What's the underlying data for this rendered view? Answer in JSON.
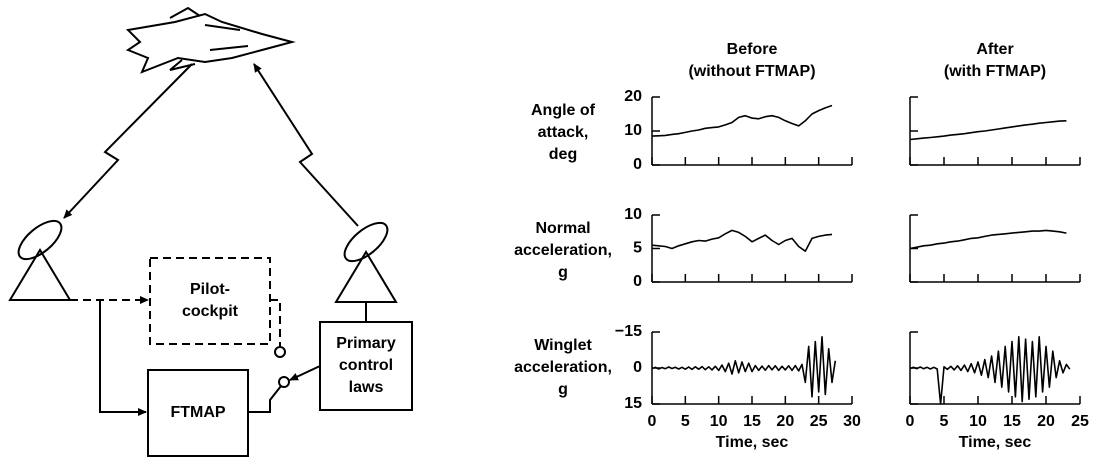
{
  "diagram": {
    "pilot": [
      "Pilot-",
      "cockpit"
    ],
    "control": [
      "Primary",
      "control",
      "laws"
    ],
    "ftmap": "FTMAP"
  },
  "chart_data": [
    {
      "type": "line",
      "title": [
        "Before",
        "(without FTMAP)"
      ],
      "ylabel": [
        "Angle of",
        "attack,",
        "deg"
      ],
      "x": [
        0,
        1,
        2,
        3,
        4,
        5,
        6,
        7,
        8,
        9,
        10,
        11,
        12,
        13,
        14,
        15,
        16,
        17,
        18,
        19,
        20,
        21,
        22,
        23,
        24,
        25,
        26,
        27
      ],
      "values": [
        8.5,
        8.6,
        8.7,
        9,
        9.2,
        9.6,
        10,
        10.3,
        10.8,
        11,
        11.2,
        11.8,
        12.5,
        14,
        14.5,
        13.8,
        13.6,
        14.2,
        14.5,
        14,
        13,
        12.2,
        11.5,
        13,
        15,
        16,
        16.8,
        17.5
      ],
      "color": "#000000",
      "xlim": [
        0,
        30
      ],
      "xticks": [
        0,
        5,
        10,
        15,
        20,
        25,
        30
      ],
      "ylim": [
        0,
        20
      ],
      "yticks": [
        0,
        10,
        20
      ],
      "show_ytick_labels": true,
      "show_xtick_labels": false
    },
    {
      "type": "line",
      "title": [
        "After",
        "(with FTMAP)"
      ],
      "x": [
        0,
        1,
        2,
        3,
        4,
        5,
        6,
        7,
        8,
        9,
        10,
        11,
        12,
        13,
        14,
        15,
        16,
        17,
        18,
        19,
        20,
        21,
        22,
        23
      ],
      "values": [
        7.5,
        7.7,
        7.9,
        8.1,
        8.3,
        8.5,
        8.8,
        9,
        9.2,
        9.5,
        9.8,
        10,
        10.3,
        10.6,
        10.9,
        11.2,
        11.5,
        11.8,
        12,
        12.3,
        12.5,
        12.7,
        12.9,
        13
      ],
      "color": "#000000",
      "xlim": [
        0,
        25
      ],
      "xticks": [
        0,
        5,
        10,
        15,
        20,
        25
      ],
      "ylim": [
        0,
        20
      ],
      "yticks": [
        0,
        10,
        20
      ],
      "show_ytick_labels": false,
      "show_xtick_labels": false
    },
    {
      "type": "line",
      "ylabel": [
        "Normal",
        "acceleration,",
        "g"
      ],
      "x": [
        0,
        1,
        2,
        3,
        4,
        5,
        6,
        7,
        8,
        9,
        10,
        11,
        12,
        13,
        14,
        15,
        16,
        17,
        18,
        19,
        20,
        21,
        22,
        23,
        24,
        25,
        26,
        27
      ],
      "values": [
        5.5,
        5.4,
        5.3,
        5,
        5.4,
        5.7,
        6,
        6.2,
        6.1,
        6.4,
        6.6,
        7.2,
        7.7,
        7.4,
        6.8,
        6,
        6.5,
        7,
        6.2,
        5.6,
        6.2,
        6.5,
        5.3,
        4.6,
        6.5,
        6.8,
        7,
        7.1
      ],
      "color": "#000000",
      "xlim": [
        0,
        30
      ],
      "xticks": [
        0,
        5,
        10,
        15,
        20,
        25,
        30
      ],
      "ylim": [
        0,
        10
      ],
      "yticks": [
        0,
        5,
        10
      ],
      "show_ytick_labels": true,
      "show_xtick_labels": false
    },
    {
      "type": "line",
      "x": [
        0,
        1,
        2,
        3,
        4,
        5,
        6,
        7,
        8,
        9,
        10,
        11,
        12,
        13,
        14,
        15,
        16,
        17,
        18,
        19,
        20,
        21,
        22,
        23
      ],
      "values": [
        5,
        5.2,
        5.4,
        5.5,
        5.7,
        5.8,
        6,
        6.1,
        6.3,
        6.5,
        6.6,
        6.8,
        7,
        7.1,
        7.2,
        7.3,
        7.4,
        7.5,
        7.6,
        7.6,
        7.7,
        7.6,
        7.5,
        7.3
      ],
      "color": "#000000",
      "xlim": [
        0,
        25
      ],
      "xticks": [
        0,
        5,
        10,
        15,
        20,
        25
      ],
      "ylim": [
        0,
        10
      ],
      "yticks": [
        0,
        5,
        10
      ],
      "show_ytick_labels": false,
      "show_xtick_labels": false
    },
    {
      "type": "line",
      "ylabel": [
        "Winglet",
        "acceleration,",
        "g"
      ],
      "xlabel": "Time, sec",
      "x": [
        0,
        0.5,
        1,
        1.5,
        2,
        2.5,
        3,
        3.5,
        4,
        4.5,
        5,
        5.5,
        6,
        6.5,
        7,
        7.5,
        8,
        8.5,
        9,
        9.5,
        10,
        10.5,
        11,
        11.5,
        12,
        12.5,
        13,
        13.5,
        14,
        14.5,
        15,
        15.5,
        16,
        16.5,
        17,
        17.5,
        18,
        18.5,
        19,
        19.5,
        20,
        20.5,
        21,
        21.5,
        22,
        22.5,
        23,
        23.5,
        24,
        24.5,
        25,
        25.5,
        26,
        26.5,
        27,
        27.5
      ],
      "values": [
        0.3,
        -0.3,
        0.4,
        -0.2,
        0.3,
        -0.4,
        0.2,
        -0.3,
        0.4,
        -0.3,
        0.5,
        -0.4,
        0.6,
        -0.5,
        0.5,
        -0.6,
        0.7,
        -0.5,
        0.8,
        -0.7,
        1,
        -1.2,
        1.5,
        -2,
        2.5,
        -3,
        2,
        -2.5,
        1.5,
        -2,
        1.5,
        -1,
        1,
        -0.8,
        0.9,
        -1,
        0.8,
        -0.9,
        1,
        -0.7,
        0.8,
        -0.9,
        1,
        -1,
        1.2,
        -1.5,
        6,
        -9,
        12,
        -11,
        10,
        -13,
        11,
        -8,
        6,
        -3
      ],
      "color": "#000000",
      "xlim": [
        0,
        30
      ],
      "xticks": [
        0,
        5,
        10,
        15,
        20,
        25,
        30
      ],
      "ylim": [
        15,
        -15
      ],
      "yticks": [
        {
          "value": -15,
          "label": "−15"
        },
        0,
        15
      ],
      "show_ytick_labels": true,
      "show_xtick_labels": true
    },
    {
      "type": "line",
      "xlabel": "Time, sec",
      "x": [
        0,
        0.5,
        1,
        1.5,
        2,
        2.5,
        3,
        3.5,
        4,
        4.5,
        5,
        5.5,
        6,
        6.5,
        7,
        7.5,
        8,
        8.5,
        9,
        9.5,
        10,
        10.5,
        11,
        11.5,
        12,
        12.5,
        13,
        13.5,
        14,
        14.5,
        15,
        15.5,
        16,
        16.5,
        17,
        17.5,
        18,
        18.5,
        19,
        19.5,
        20,
        20.5,
        21,
        21.5,
        22,
        22.5,
        23,
        23.5
      ],
      "values": [
        0.3,
        -0.3,
        0.3,
        -0.4,
        0.3,
        -0.3,
        0.4,
        -0.3,
        0.4,
        15,
        -0.5,
        0.6,
        -0.7,
        0.8,
        -0.9,
        1,
        -1.2,
        1.5,
        -1.8,
        2,
        -2.5,
        3,
        -3.5,
        4,
        -5,
        6,
        -7,
        8,
        -9,
        10,
        -11,
        12,
        -13,
        14,
        -12,
        13,
        -11,
        12,
        -13,
        10,
        -9,
        8,
        -7,
        4,
        -3,
        2,
        -1.5,
        0.5
      ],
      "color": "#000000",
      "xlim": [
        0,
        25
      ],
      "xticks": [
        0,
        5,
        10,
        15,
        20,
        25
      ],
      "ylim": [
        15,
        -15
      ],
      "yticks": [
        {
          "value": -15,
          "label": "−15"
        },
        0,
        15
      ],
      "show_ytick_labels": false,
      "show_xtick_labels": true
    }
  ]
}
